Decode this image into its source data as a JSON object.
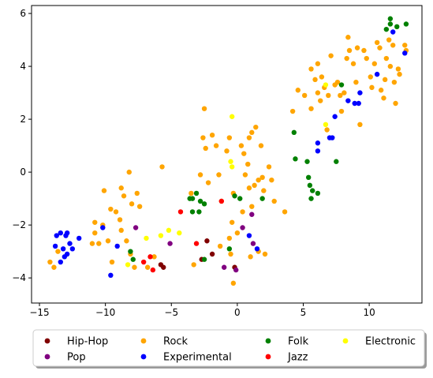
{
  "chart_data": {
    "type": "scatter",
    "title": "",
    "xlabel": "",
    "ylabel": "",
    "xlim": [
      -15.6,
      14.0
    ],
    "ylim": [
      -4.95,
      6.3
    ],
    "grid": false,
    "x_ticks": [
      -15,
      -10,
      -5,
      0,
      5,
      10
    ],
    "x_tick_labels": [
      "−15",
      "−10",
      "−5",
      "0",
      "5",
      "10"
    ],
    "y_ticks": [
      -4,
      -2,
      0,
      2,
      4,
      6
    ],
    "y_tick_labels": [
      "−4",
      "−2",
      "0",
      "2",
      "4",
      "6"
    ],
    "legend": {
      "placement": "below plot, centered, 4 columns",
      "shadow": true
    },
    "series": [
      {
        "name": "Hip-Hop",
        "color": "#800000",
        "points": [
          [
            -5.8,
            -3.5
          ],
          [
            -5.6,
            -3.6
          ],
          [
            -2.3,
            -2.6
          ],
          [
            -1.9,
            -3.1
          ],
          [
            -2.7,
            -3.3
          ],
          [
            -0.2,
            -3.6
          ]
        ]
      },
      {
        "name": "Pop",
        "color": "#800080",
        "points": [
          [
            -7.7,
            -2.1
          ],
          [
            -5.1,
            -2.7
          ],
          [
            -1.0,
            -3.6
          ],
          [
            1.1,
            -1.6
          ],
          [
            0.4,
            -2.1
          ],
          [
            1.2,
            -2.7
          ],
          [
            -0.1,
            -3.7
          ]
        ]
      },
      {
        "name": "Rock",
        "color": "#ffa500",
        "points": [
          [
            -14.2,
            -3.4
          ],
          [
            -13.9,
            -3.6
          ],
          [
            -13.6,
            -3.0
          ],
          [
            -11.0,
            -2.7
          ],
          [
            -10.8,
            -2.3
          ],
          [
            -10.5,
            -2.7
          ],
          [
            -10.2,
            -2.0
          ],
          [
            -9.8,
            -2.6
          ],
          [
            -9.5,
            -3.4
          ],
          [
            -9.2,
            -1.5
          ],
          [
            -8.9,
            -1.8
          ],
          [
            -8.4,
            -2.6
          ],
          [
            -8.1,
            -3.1
          ],
          [
            -7.8,
            -3.6
          ],
          [
            -8.0,
            -1.2
          ],
          [
            -7.4,
            -1.3
          ],
          [
            -8.8,
            -2.2
          ],
          [
            -10.1,
            -0.7
          ],
          [
            -9.6,
            -1.4
          ],
          [
            -8.8,
            -0.6
          ],
          [
            -8.6,
            -0.9
          ],
          [
            -8.2,
            0.0
          ],
          [
            -7.6,
            -0.8
          ],
          [
            -10.8,
            -1.9
          ],
          [
            -6.8,
            -3.6
          ],
          [
            -6.3,
            -3.2
          ],
          [
            -5.7,
            0.2
          ],
          [
            -3.5,
            -0.8
          ],
          [
            -3.3,
            -3.5
          ],
          [
            -2.8,
            -0.1
          ],
          [
            -2.5,
            2.4
          ],
          [
            -2.6,
            1.3
          ],
          [
            -2.4,
            0.9
          ],
          [
            -1.9,
            1.4
          ],
          [
            -1.6,
            1.0
          ],
          [
            -2.2,
            -0.4
          ],
          [
            -1.4,
            -0.1
          ],
          [
            -0.8,
            0.8
          ],
          [
            -0.6,
            1.3
          ],
          [
            -0.3,
            -0.8
          ],
          [
            -1.2,
            -1.1
          ],
          [
            -0.4,
            -1.9
          ],
          [
            -0.6,
            -2.5
          ],
          [
            -1.3,
            -2.8
          ],
          [
            0.3,
            1.0
          ],
          [
            0.5,
            0.7
          ],
          [
            0.9,
            1.3
          ],
          [
            1.1,
            1.5
          ],
          [
            0.8,
            0.3
          ],
          [
            0.6,
            -0.1
          ],
          [
            0.9,
            -0.6
          ],
          [
            1.3,
            -0.5
          ],
          [
            1.6,
            -0.3
          ],
          [
            1.9,
            -0.2
          ],
          [
            2.0,
            -0.7
          ],
          [
            1.1,
            -1.3
          ],
          [
            0.4,
            -1.5
          ],
          [
            0.0,
            -2.3
          ],
          [
            -0.5,
            -3.1
          ],
          [
            -0.3,
            -4.2
          ],
          [
            1.0,
            -3.2
          ],
          [
            1.6,
            -3.0
          ],
          [
            2.1,
            -3.1
          ],
          [
            1.4,
            1.7
          ],
          [
            1.8,
            1.0
          ],
          [
            2.4,
            0.2
          ],
          [
            2.6,
            -0.3
          ],
          [
            2.8,
            -1.1
          ],
          [
            3.6,
            -1.5
          ],
          [
            4.2,
            2.3
          ],
          [
            4.6,
            3.1
          ],
          [
            5.1,
            2.9
          ],
          [
            5.6,
            2.4
          ],
          [
            5.6,
            3.9
          ],
          [
            5.9,
            3.5
          ],
          [
            6.1,
            3.0
          ],
          [
            6.3,
            2.7
          ],
          [
            6.4,
            3.6
          ],
          [
            6.6,
            3.2
          ],
          [
            6.1,
            4.1
          ],
          [
            6.8,
            1.6
          ],
          [
            6.9,
            2.9
          ],
          [
            7.1,
            4.4
          ],
          [
            7.4,
            3.3
          ],
          [
            7.6,
            3.4
          ],
          [
            7.8,
            2.9
          ],
          [
            7.9,
            2.3
          ],
          [
            8.1,
            3.0
          ],
          [
            8.3,
            4.3
          ],
          [
            8.5,
            4.6
          ],
          [
            8.4,
            5.1
          ],
          [
            8.8,
            4.1
          ],
          [
            9.0,
            3.4
          ],
          [
            9.1,
            4.7
          ],
          [
            9.3,
            1.8
          ],
          [
            9.6,
            4.6
          ],
          [
            9.8,
            4.3
          ],
          [
            10.1,
            3.6
          ],
          [
            10.2,
            3.2
          ],
          [
            10.4,
            4.1
          ],
          [
            10.6,
            4.9
          ],
          [
            10.8,
            4.7
          ],
          [
            10.9,
            3.1
          ],
          [
            11.1,
            2.8
          ],
          [
            11.2,
            3.5
          ],
          [
            11.3,
            4.3
          ],
          [
            11.5,
            5.0
          ],
          [
            11.6,
            4.0
          ],
          [
            11.8,
            4.8
          ],
          [
            11.9,
            3.4
          ],
          [
            12.0,
            2.6
          ],
          [
            12.2,
            3.9
          ],
          [
            12.3,
            3.7
          ],
          [
            12.7,
            4.8
          ],
          [
            12.8,
            4.6
          ]
        ]
      },
      {
        "name": "Experimental",
        "color": "#0000ff",
        "points": [
          [
            -13.8,
            -2.8
          ],
          [
            -13.7,
            -2.4
          ],
          [
            -13.4,
            -2.3
          ],
          [
            -13.2,
            -2.9
          ],
          [
            -13.1,
            -3.2
          ],
          [
            -13.0,
            -2.4
          ],
          [
            -12.9,
            -2.3
          ],
          [
            -12.7,
            -2.7
          ],
          [
            -12.5,
            -2.9
          ],
          [
            -13.4,
            -3.4
          ],
          [
            -12.9,
            -3.1
          ],
          [
            -12.0,
            -2.5
          ],
          [
            -10.2,
            -2.1
          ],
          [
            -9.6,
            -3.9
          ],
          [
            -9.1,
            -2.8
          ],
          [
            0.9,
            -2.4
          ],
          [
            1.5,
            -2.9
          ],
          [
            6.1,
            1.1
          ],
          [
            7.0,
            1.3
          ],
          [
            6.1,
            0.8
          ],
          [
            7.2,
            1.3
          ],
          [
            7.4,
            2.1
          ],
          [
            8.4,
            2.7
          ],
          [
            8.9,
            2.6
          ],
          [
            9.2,
            2.6
          ],
          [
            9.3,
            3.0
          ],
          [
            10.6,
            3.7
          ],
          [
            11.8,
            5.3
          ],
          [
            12.7,
            4.5
          ]
        ]
      },
      {
        "name": "Folk",
        "color": "#008000",
        "points": [
          [
            -8.1,
            -3.0
          ],
          [
            -7.9,
            -3.3
          ],
          [
            -3.6,
            -1.0
          ],
          [
            -3.4,
            -1.0
          ],
          [
            -3.1,
            -0.8
          ],
          [
            -2.8,
            -1.1
          ],
          [
            -2.5,
            -1.2
          ],
          [
            -3.4,
            -1.5
          ],
          [
            -2.9,
            -1.5
          ],
          [
            -2.5,
            -3.3
          ],
          [
            -0.6,
            -2.9
          ],
          [
            -0.2,
            -0.9
          ],
          [
            0.2,
            -1.0
          ],
          [
            1.9,
            -1.0
          ],
          [
            4.3,
            1.5
          ],
          [
            4.4,
            0.5
          ],
          [
            5.3,
            0.4
          ],
          [
            5.4,
            -0.2
          ],
          [
            5.5,
            -0.5
          ],
          [
            5.7,
            -0.7
          ],
          [
            5.6,
            -1.0
          ],
          [
            6.1,
            -0.8
          ],
          [
            7.5,
            0.4
          ],
          [
            7.9,
            3.3
          ],
          [
            11.3,
            5.4
          ],
          [
            11.6,
            5.6
          ],
          [
            12.1,
            5.5
          ],
          [
            12.8,
            5.6
          ],
          [
            11.6,
            5.8
          ]
        ]
      },
      {
        "name": "Jazz",
        "color": "#ff0000",
        "points": [
          [
            -7.1,
            -3.4
          ],
          [
            -6.6,
            -3.2
          ],
          [
            -6.4,
            -3.7
          ],
          [
            -4.3,
            -1.5
          ],
          [
            -3.1,
            -2.7
          ],
          [
            -1.2,
            -1.1
          ]
        ]
      },
      {
        "name": "Electronic",
        "color": "#ffff00",
        "points": [
          [
            -8.3,
            -3.5
          ],
          [
            -6.9,
            -2.5
          ],
          [
            -5.8,
            -2.4
          ],
          [
            -5.2,
            -2.2
          ],
          [
            -4.4,
            -2.3
          ],
          [
            -0.5,
            0.4
          ],
          [
            -0.4,
            0.2
          ],
          [
            -0.4,
            2.1
          ],
          [
            6.7,
            1.8
          ],
          [
            6.7,
            3.3
          ]
        ]
      }
    ]
  }
}
